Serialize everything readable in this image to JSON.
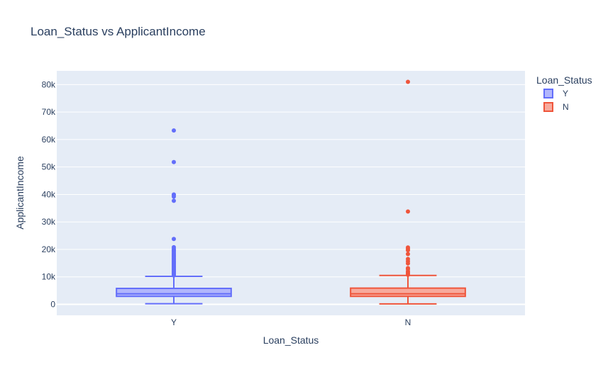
{
  "chart_data": {
    "type": "box",
    "title": "Loan_Status vs ApplicantIncome",
    "xlabel": "Loan_Status",
    "ylabel": "ApplicantIncome",
    "categories": [
      "Y",
      "N"
    ],
    "ylim": [
      -4000,
      85000
    ],
    "yticks": [
      0,
      10000,
      20000,
      30000,
      40000,
      50000,
      60000,
      70000,
      80000
    ],
    "ytick_labels": [
      "0",
      "10k",
      "20k",
      "30k",
      "40k",
      "50k",
      "60k",
      "70k",
      "80k"
    ],
    "grid": true,
    "legend": {
      "title": "Loan_Status",
      "placement": "top-right"
    },
    "series": [
      {
        "name": "Y",
        "color": "#636efa",
        "fill": "#b1b6fc",
        "min": 210,
        "q1": 2900,
        "median": 3850,
        "q3": 5800,
        "upper_fence": 10200,
        "outliers": [
          63300,
          51800,
          40000,
          39800,
          39200,
          37700,
          23800,
          20800,
          20200,
          19700,
          19500,
          19000,
          18500,
          18200,
          17800,
          17500,
          17200,
          16800,
          16500,
          16200,
          15800,
          15500,
          15200,
          14900,
          14600,
          14300,
          14000,
          13700,
          13400,
          13100,
          12800,
          12500,
          12200,
          11900,
          11600,
          11300,
          11000,
          10700,
          10500
        ]
      },
      {
        "name": "N",
        "color": "#ef553b",
        "fill": "#f7aa9d",
        "min": 150,
        "q1": 2900,
        "median": 3850,
        "q3": 5900,
        "upper_fence": 10500,
        "outliers": [
          81000,
          33800,
          20700,
          20200,
          19700,
          18300,
          16500,
          15700,
          14900,
          13200,
          12800,
          12000,
          11500,
          11100,
          10750
        ]
      }
    ]
  }
}
